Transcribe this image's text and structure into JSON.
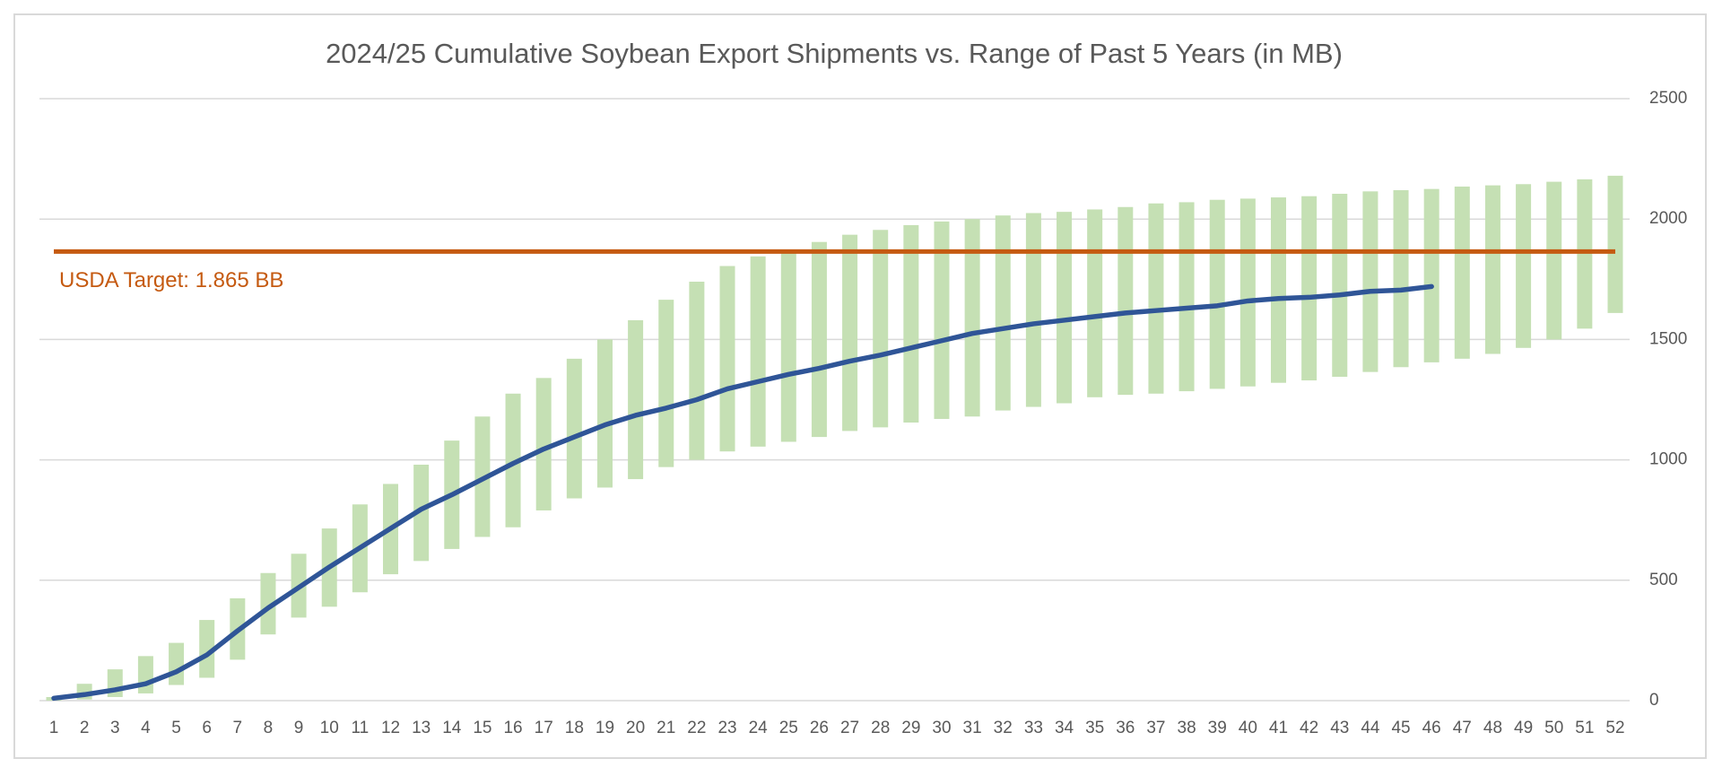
{
  "chart_data": {
    "type": "range_bar_line",
    "title": "2024/25 Cumulative Soybean Export Shipments vs. Range of Past 5 Years (in MB)",
    "categories": [
      "1",
      "2",
      "3",
      "4",
      "5",
      "6",
      "7",
      "8",
      "9",
      "10",
      "11",
      "12",
      "13",
      "14",
      "15",
      "16",
      "17",
      "18",
      "19",
      "20",
      "21",
      "22",
      "23",
      "24",
      "25",
      "26",
      "27",
      "28",
      "29",
      "30",
      "31",
      "32",
      "33",
      "34",
      "35",
      "36",
      "37",
      "38",
      "39",
      "40",
      "41",
      "42",
      "43",
      "44",
      "45",
      "46",
      "47",
      "48",
      "49",
      "50",
      "51",
      "52"
    ],
    "ranges": {
      "color": "#c5e0b4",
      "low": [
        0,
        5,
        15,
        30,
        65,
        95,
        170,
        275,
        345,
        390,
        450,
        525,
        580,
        630,
        680,
        720,
        790,
        840,
        885,
        920,
        970,
        1000,
        1035,
        1055,
        1075,
        1095,
        1120,
        1135,
        1155,
        1170,
        1180,
        1205,
        1220,
        1235,
        1260,
        1270,
        1275,
        1285,
        1295,
        1305,
        1320,
        1330,
        1345,
        1365,
        1385,
        1405,
        1420,
        1440,
        1465,
        1500,
        1545,
        1610
      ],
      "high": [
        15,
        70,
        130,
        185,
        240,
        335,
        425,
        530,
        610,
        715,
        815,
        900,
        980,
        1080,
        1180,
        1275,
        1340,
        1420,
        1500,
        1580,
        1665,
        1740,
        1805,
        1845,
        1870,
        1905,
        1935,
        1955,
        1975,
        1990,
        2000,
        2015,
        2025,
        2030,
        2040,
        2050,
        2065,
        2070,
        2080,
        2085,
        2090,
        2095,
        2105,
        2115,
        2120,
        2125,
        2135,
        2140,
        2145,
        2155,
        2165,
        2180
      ]
    },
    "series": [
      {
        "color": "#2f5597",
        "values": [
          10,
          25,
          45,
          70,
          120,
          190,
          290,
          385,
          470,
          555,
          635,
          715,
          795,
          855,
          920,
          985,
          1045,
          1095,
          1145,
          1185,
          1215,
          1250,
          1295,
          1325,
          1355,
          1380,
          1410,
          1435,
          1465,
          1495,
          1525,
          1545,
          1565,
          1580,
          1595,
          1610,
          1620,
          1630,
          1640,
          1660,
          1670,
          1675,
          1685,
          1700,
          1705,
          1720,
          null,
          null,
          null,
          null,
          null,
          null
        ]
      }
    ],
    "target": {
      "value": 1865,
      "label": "USDA Target: 1.865 BB",
      "color": "#c55a11"
    },
    "ylim": [
      0,
      2500
    ],
    "yticks": [
      0,
      500,
      1000,
      1500,
      2000,
      2500
    ],
    "grid": true,
    "y_axis_side": "right"
  }
}
